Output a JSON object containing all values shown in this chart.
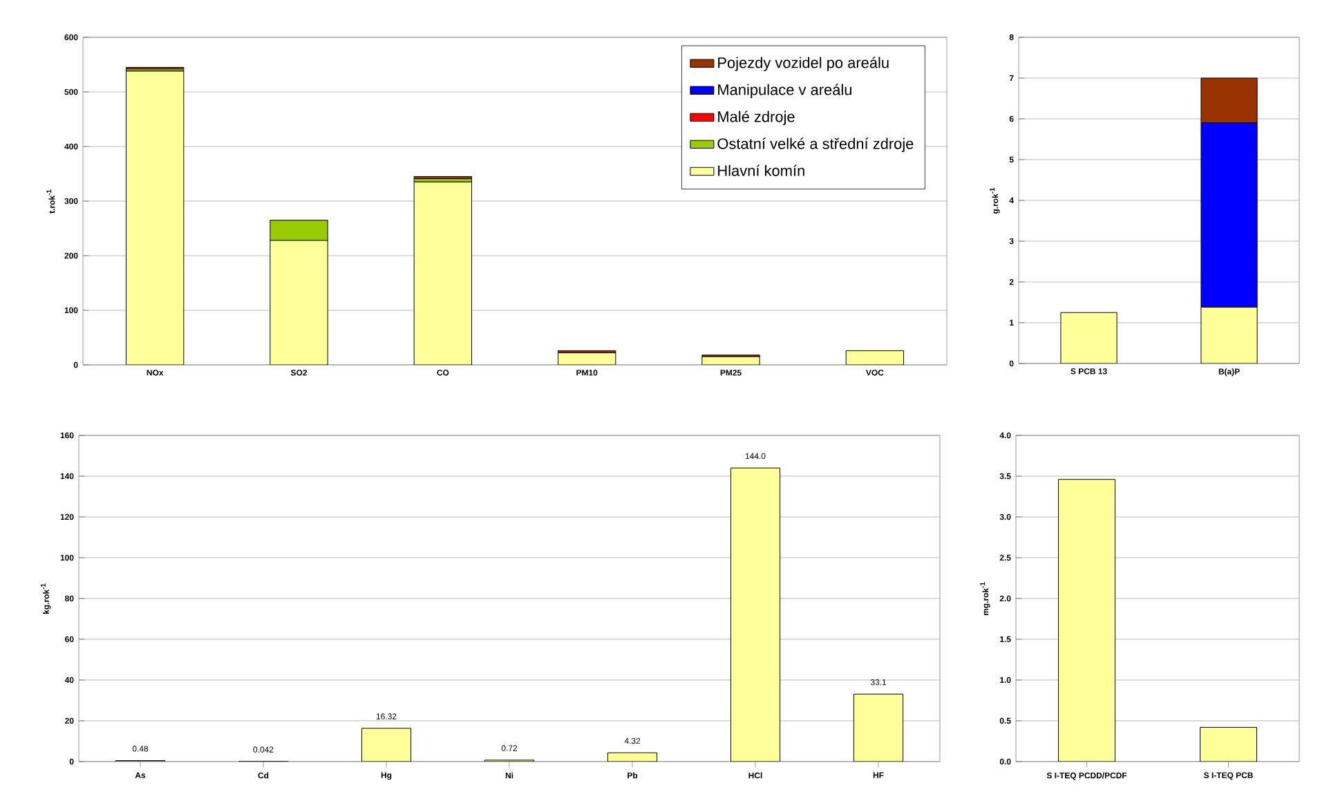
{
  "chart_data": [
    {
      "type": "bar",
      "stacked": true,
      "ylabel": "t.rok$^{-1}$",
      "categories": [
        "NOx",
        "SO2",
        "CO",
        "PM10",
        "PM25",
        "VOC"
      ],
      "ylim": [
        0,
        600
      ],
      "yticks": [
        0,
        100,
        200,
        300,
        400,
        500,
        600
      ],
      "grid": "y",
      "legend": "top right",
      "series": [
        {
          "name": "Hlavní komín",
          "color": "#ffff99",
          "values": [
            538,
            228,
            335,
            22,
            15,
            26
          ]
        },
        {
          "name": "Ostatní velké a střední zdroje",
          "color": "#99cc00",
          "values": [
            4,
            37,
            6,
            0,
            0,
            0
          ]
        },
        {
          "name": "Malé zdroje",
          "color": "#ff0000",
          "values": [
            0,
            0,
            0,
            0,
            0,
            0
          ]
        },
        {
          "name": "Manipulace v areálu",
          "color": "#0000ff",
          "values": [
            0,
            0,
            0,
            0,
            0,
            0
          ]
        },
        {
          "name": "Pojezdy vozidel po areálu",
          "color": "#993300",
          "values": [
            3,
            0,
            4,
            4,
            3,
            0
          ]
        }
      ]
    },
    {
      "type": "bar",
      "stacked": true,
      "ylabel": "g.rok$^{-1}$",
      "categories": [
        "S PCB 13",
        "B(a)P"
      ],
      "ylim": [
        0,
        8
      ],
      "yticks": [
        0,
        1,
        2,
        3,
        4,
        5,
        6,
        7,
        8
      ],
      "grid": "y",
      "series": [
        {
          "color": "#ffff99",
          "values": [
            1.25,
            1.38
          ]
        },
        {
          "color": "#0000ff",
          "values": [
            0,
            4.52
          ]
        },
        {
          "color": "#993300",
          "values": [
            0,
            1.1
          ]
        }
      ]
    },
    {
      "type": "bar",
      "ylabel": "kg.rok$^{-1}$",
      "categories": [
        "As",
        "Cd",
        "Hg",
        "Ni",
        "Pb",
        "HCl",
        "HF"
      ],
      "ylim": [
        0,
        160
      ],
      "yticks": [
        0,
        20,
        40,
        60,
        80,
        100,
        120,
        140,
        160
      ],
      "grid": "y",
      "color": "#ffff99",
      "values": [
        0.48,
        0.042,
        16.32,
        0.72,
        4.32,
        144.0,
        33.1
      ],
      "value_labels": [
        "0.48",
        "0.042",
        "16.32",
        "0.72",
        "4.32",
        "144.0",
        "33.1"
      ]
    },
    {
      "type": "bar",
      "ylabel": "mg.rok$^{-1}$",
      "categories": [
        "S I-TEQ PCDD/PCDF",
        "S I-TEQ PCB"
      ],
      "ylim": [
        0,
        4
      ],
      "yticks": [
        {
          "value": 0,
          "label": "0.0"
        },
        {
          "value": 0.5,
          "label": "0.5"
        },
        {
          "value": 1,
          "label": "1.0"
        },
        {
          "value": 1.5,
          "label": "1.5"
        },
        {
          "value": 2,
          "label": "2.0"
        },
        {
          "value": 2.5,
          "label": "2.5"
        },
        {
          "value": 3,
          "label": "3.0"
        },
        {
          "value": 3.5,
          "label": "3.5"
        },
        {
          "value": 4,
          "label": "4.0"
        }
      ],
      "grid": "y",
      "color": "#ffff99",
      "values": [
        3.46,
        0.42
      ]
    }
  ]
}
